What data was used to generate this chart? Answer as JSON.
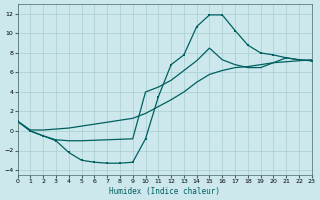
{
  "xlabel": "Humidex (Indice chaleur)",
  "bg_color": "#cce8ec",
  "grid_color": "#aacdd0",
  "line_color": "#006060",
  "xlim": [
    0,
    23
  ],
  "ylim": [
    -4.5,
    13
  ],
  "xticks": [
    0,
    1,
    2,
    3,
    4,
    5,
    6,
    7,
    8,
    9,
    10,
    11,
    12,
    13,
    14,
    15,
    16,
    17,
    18,
    19,
    20,
    21,
    22,
    23
  ],
  "yticks": [
    -4,
    -2,
    0,
    2,
    4,
    6,
    8,
    10,
    12
  ],
  "curve1_x": [
    0,
    1,
    2,
    3,
    4,
    5,
    6,
    7,
    8,
    9,
    10,
    11,
    12,
    13,
    14,
    15,
    16,
    17,
    18,
    19,
    20,
    21,
    22,
    23
  ],
  "curve1_y": [
    1.0,
    0.0,
    -0.5,
    -1.0,
    -2.2,
    -3.0,
    -3.2,
    -3.3,
    -3.3,
    -3.2,
    -0.8,
    3.5,
    6.8,
    7.8,
    10.7,
    11.9,
    11.9,
    10.3,
    8.8,
    8.0,
    7.8,
    7.5,
    7.3,
    7.2
  ],
  "curve2_x": [
    0,
    1,
    2,
    3,
    4,
    5,
    6,
    7,
    8,
    9,
    10,
    11,
    12,
    13,
    14,
    15,
    16,
    17,
    18,
    19,
    20,
    21,
    22,
    23
  ],
  "curve2_y": [
    1.0,
    0.1,
    0.1,
    0.2,
    0.3,
    0.5,
    0.7,
    0.9,
    1.1,
    1.3,
    1.8,
    2.5,
    3.2,
    4.0,
    5.0,
    5.8,
    6.2,
    6.5,
    6.6,
    6.8,
    7.0,
    7.1,
    7.2,
    7.3
  ],
  "curve3_x": [
    0,
    1,
    2,
    3,
    4,
    5,
    9,
    10,
    11,
    12,
    13,
    14,
    15,
    16,
    17,
    18,
    19,
    20,
    21,
    22,
    23
  ],
  "curve3_y": [
    1.0,
    0.0,
    -0.5,
    -0.9,
    -1.0,
    -1.0,
    -0.8,
    4.0,
    4.5,
    5.2,
    6.2,
    7.2,
    8.5,
    7.3,
    6.8,
    6.5,
    6.5,
    7.0,
    7.5,
    7.3,
    7.2
  ]
}
